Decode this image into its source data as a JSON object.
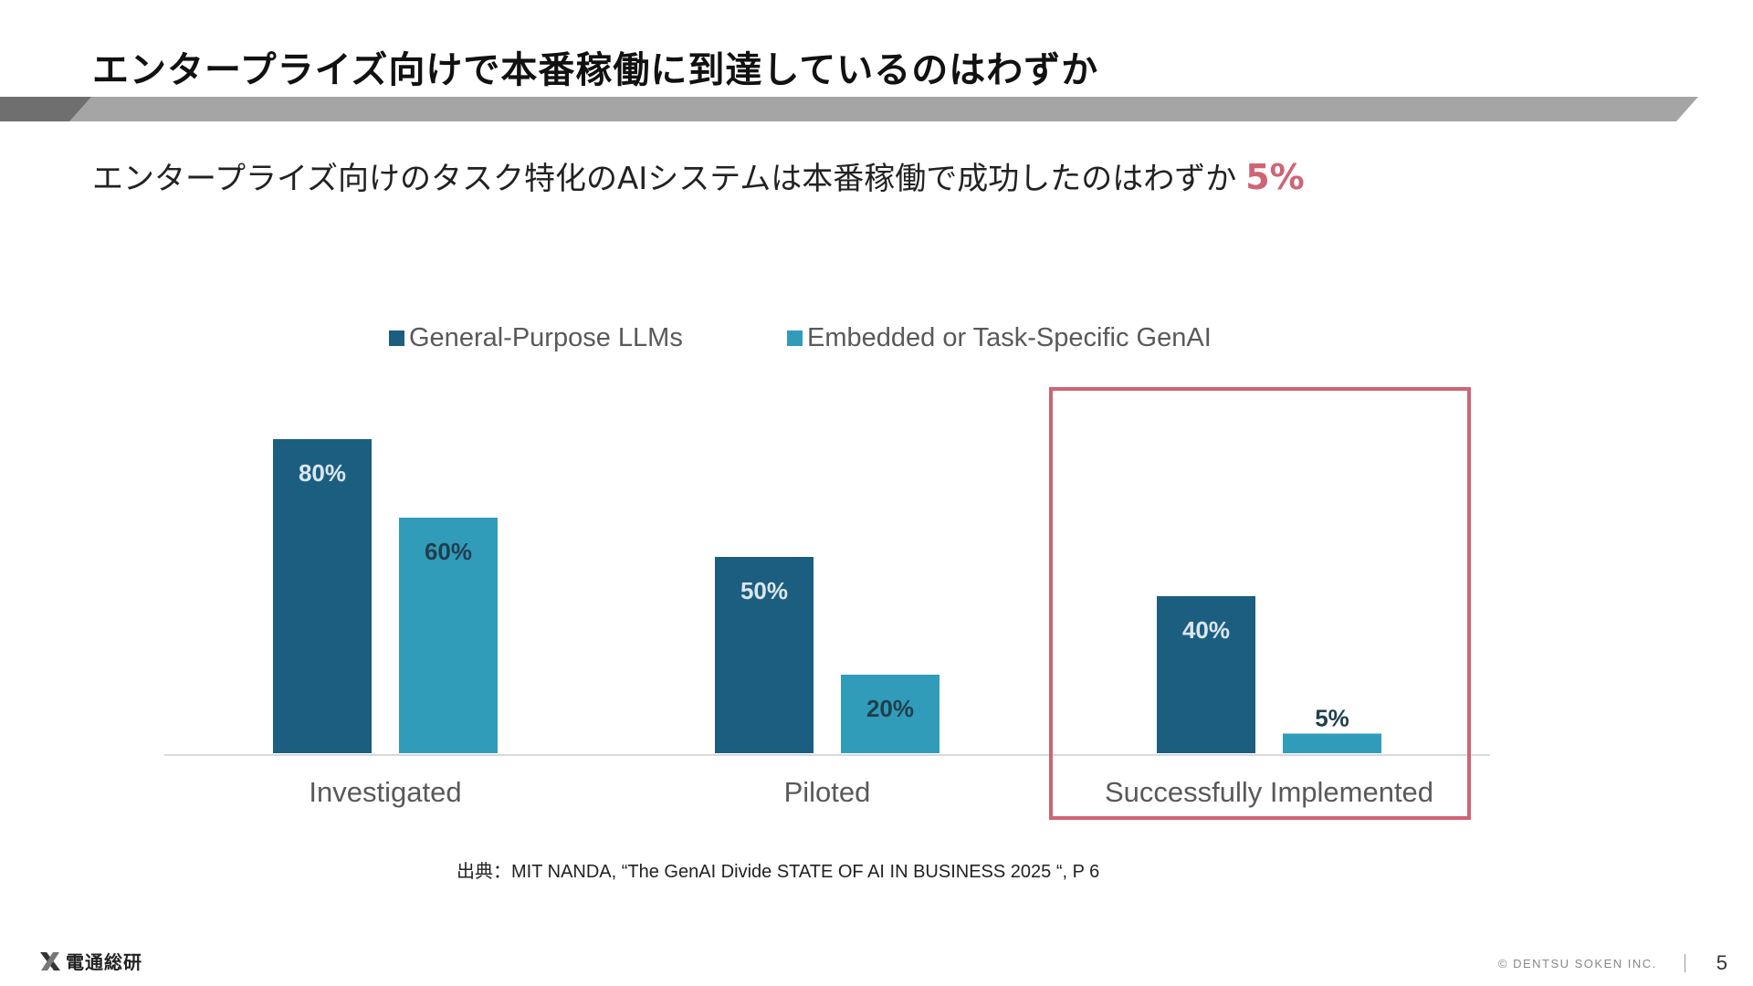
{
  "slide": {
    "title": "エンタープライズ向けで本番稼働に到達しているのはわずか",
    "subtitle": "エンタープライズ向けのタスク特化のAIシステムは本番稼働で成功したのはわずか",
    "subtitle_highlight": "5%",
    "source": "出典：MIT NANDA, “The GenAI Divide STATE OF AI IN BUSINESS 2025 “, P 6",
    "logo_text": "電通総研",
    "copyright": "© DENTSU SOKEN INC.",
    "page_number": "5"
  },
  "colors": {
    "series1": "#1b5e80",
    "series2": "#319cba",
    "highlight": "#cf6475",
    "bar_dark": "#6f6f6f",
    "bar_light": "#a5a5a5"
  },
  "chart_data": {
    "type": "bar",
    "categories": [
      "Investigated",
      "Piloted",
      "Successfully Implemented"
    ],
    "series": [
      {
        "name": "General-Purpose LLMs",
        "values": [
          80,
          50,
          40
        ]
      },
      {
        "name": "Embedded or Task-Specific GenAI",
        "values": [
          60,
          20,
          5
        ]
      }
    ],
    "data_labels": [
      [
        "80%",
        "50%",
        "40%"
      ],
      [
        "60%",
        "20%",
        "5%"
      ]
    ],
    "ylim": [
      0,
      100
    ],
    "grid": false,
    "legend_position": "top",
    "highlighted_category": "Successfully Implemented"
  }
}
